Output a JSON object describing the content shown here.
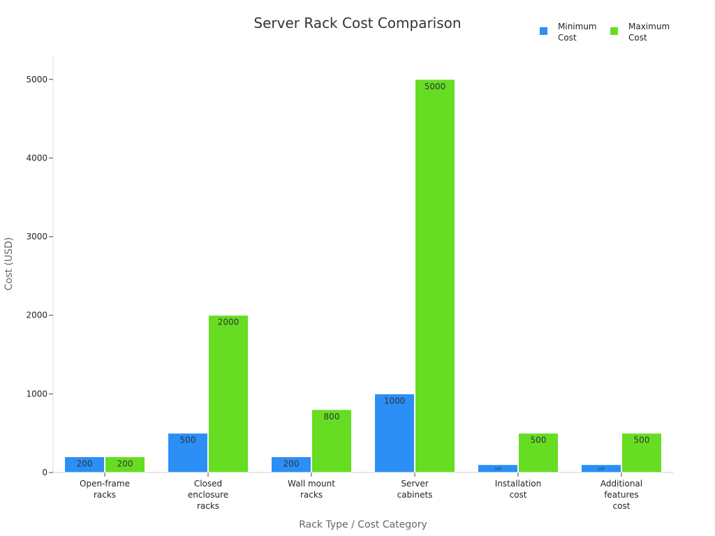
{
  "chart_data": {
    "type": "bar",
    "title": "Server Rack Cost Comparison",
    "xlabel": "Rack Type / Cost Category",
    "ylabel": "Cost (USD)",
    "categories": [
      [
        "Open-frame",
        "racks"
      ],
      [
        "Closed",
        "enclosure",
        "racks"
      ],
      [
        "Wall mount",
        "racks"
      ],
      [
        "Server",
        "cabinets"
      ],
      [
        "Installation",
        "cost"
      ],
      [
        "Additional",
        "features",
        "cost"
      ]
    ],
    "series": [
      {
        "name": [
          "Minimum",
          "Cost"
        ],
        "color": "#2b8ff5",
        "values": [
          200,
          500,
          200,
          1000,
          100,
          100
        ]
      },
      {
        "name": [
          "Maximum",
          "Cost"
        ],
        "color": "#66dd22",
        "values": [
          200,
          2000,
          800,
          5000,
          500,
          500
        ]
      }
    ],
    "ylim": [
      0,
      5300
    ],
    "yticks": [
      0,
      1000,
      2000,
      3000,
      4000,
      5000
    ],
    "grid": false,
    "legend_position": "top-right",
    "data_labels": true
  }
}
